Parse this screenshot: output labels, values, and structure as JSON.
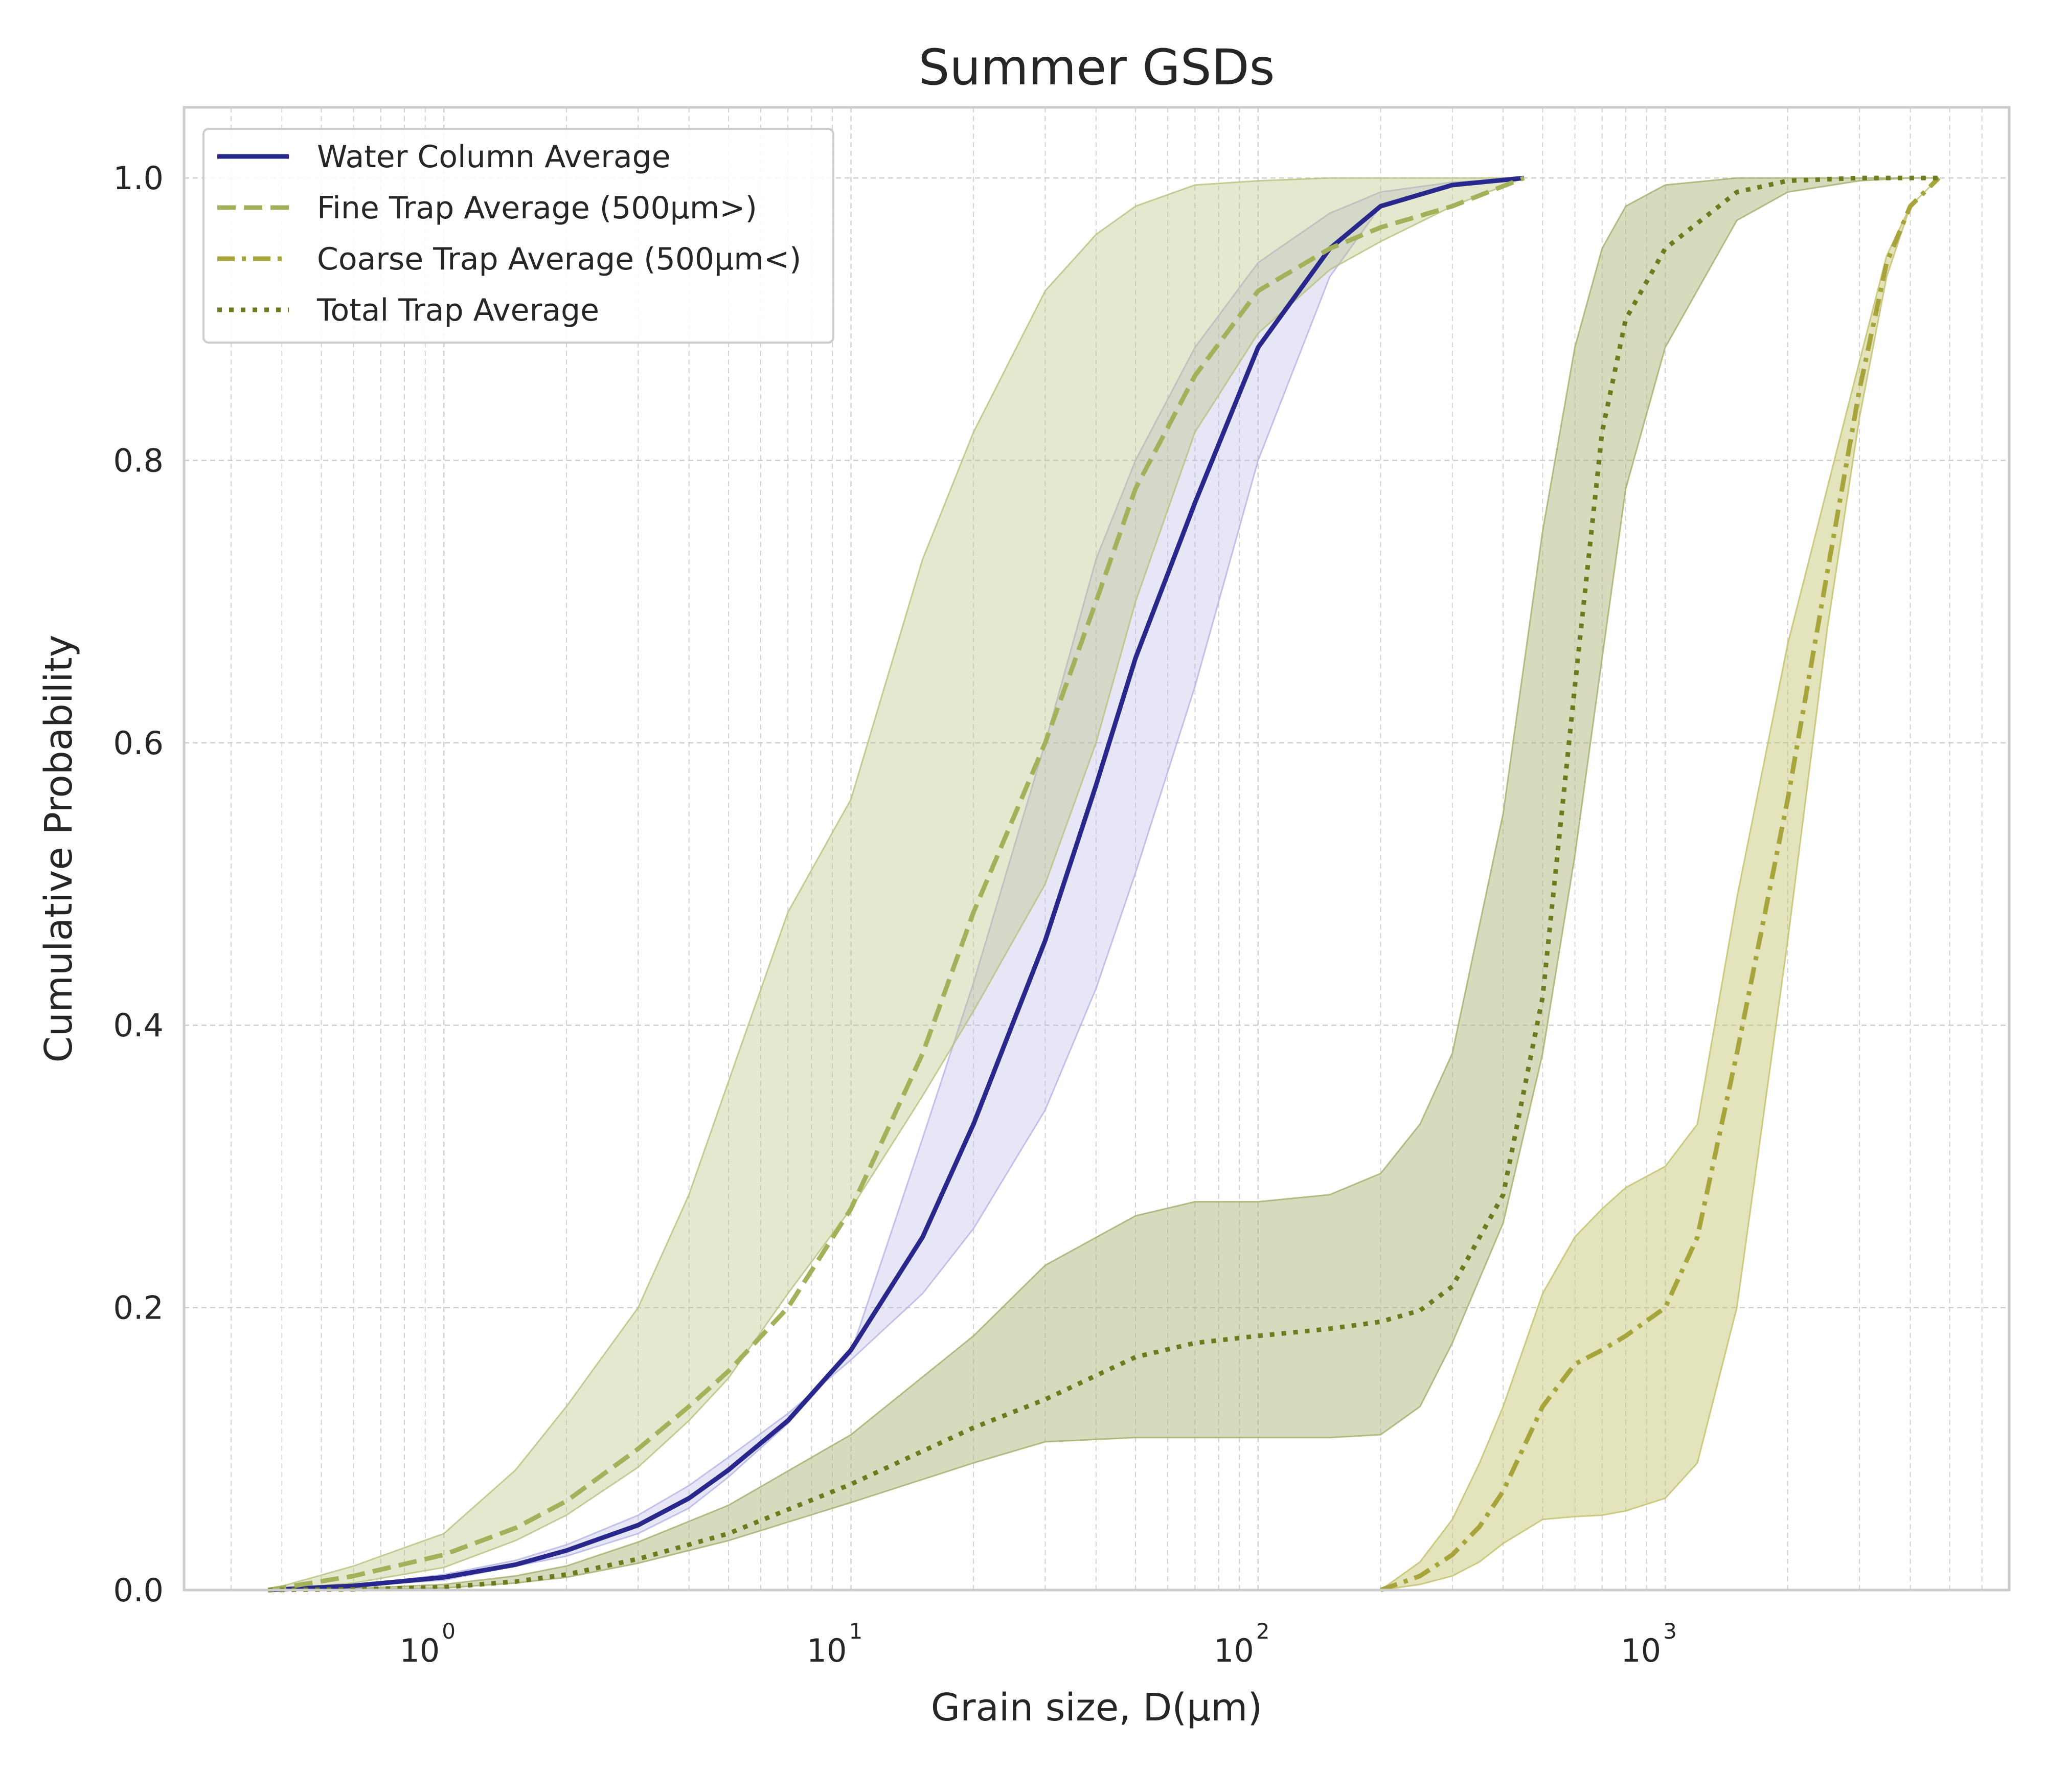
{
  "chart_data": {
    "type": "line",
    "title": "Summer GSDs",
    "xlabel": "Grain size, D(μm)",
    "ylabel": "Cumulative Probability",
    "xscale": "log",
    "xlim": [
      0.23,
      7000
    ],
    "ylim": [
      0,
      1.05
    ],
    "grid": true,
    "legend_position": "top-left",
    "xtick_labels": [
      {
        "value": 1,
        "base": "10",
        "exp": "0"
      },
      {
        "value": 10,
        "base": "10",
        "exp": "1"
      },
      {
        "value": 100,
        "base": "10",
        "exp": "2"
      },
      {
        "value": 1000,
        "base": "10",
        "exp": "3"
      }
    ],
    "ytick_labels": [
      "0.0",
      "0.2",
      "0.4",
      "0.6",
      "0.8",
      "1.0"
    ],
    "series": [
      {
        "name": "Water Column Average",
        "style": "solid",
        "color": "#28288c",
        "band_color": "#b4b4e6",
        "band_opacity": 0.33,
        "x": [
          0.37,
          0.6,
          1.0,
          1.5,
          2.0,
          3.0,
          4.0,
          5.0,
          7.0,
          10.0,
          15.0,
          20.0,
          30.0,
          40.0,
          50.0,
          70.0,
          100.0,
          150.0,
          200.0,
          300.0,
          450.0
        ],
        "y": [
          0.0,
          0.003,
          0.009,
          0.018,
          0.028,
          0.046,
          0.065,
          0.085,
          0.12,
          0.17,
          0.25,
          0.33,
          0.46,
          0.57,
          0.66,
          0.77,
          0.88,
          0.95,
          0.98,
          0.995,
          1.0
        ],
        "y_lower": [
          0.0,
          0.003,
          0.011,
          0.021,
          0.032,
          0.053,
          0.074,
          0.094,
          0.125,
          0.163,
          0.21,
          0.256,
          0.34,
          0.426,
          0.508,
          0.64,
          0.8,
          0.93,
          0.98,
          0.995,
          1.0
        ],
        "y_upper": [
          0.0,
          0.003,
          0.007,
          0.017,
          0.024,
          0.04,
          0.058,
          0.08,
          0.118,
          0.168,
          0.32,
          0.43,
          0.6,
          0.73,
          0.8,
          0.88,
          0.94,
          0.975,
          0.99,
          0.997,
          1.0
        ]
      },
      {
        "name": "Fine Trap Average (500μm>)",
        "style": "dashed",
        "color": "#a3b15a",
        "band_color": "#b7c27d",
        "band_opacity": 0.38,
        "x": [
          0.37,
          0.6,
          1.0,
          1.5,
          2.0,
          3.0,
          4.0,
          5.0,
          7.0,
          10.0,
          15.0,
          20.0,
          30.0,
          40.0,
          50.0,
          70.0,
          100.0,
          150.0,
          200.0,
          300.0,
          450.0
        ],
        "y": [
          0.0,
          0.01,
          0.025,
          0.044,
          0.063,
          0.1,
          0.13,
          0.155,
          0.2,
          0.27,
          0.38,
          0.48,
          0.6,
          0.7,
          0.78,
          0.86,
          0.92,
          0.95,
          0.965,
          0.98,
          1.0
        ],
        "y_lower": [
          0.0,
          0.005,
          0.016,
          0.035,
          0.053,
          0.087,
          0.12,
          0.15,
          0.21,
          0.27,
          0.35,
          0.41,
          0.5,
          0.6,
          0.7,
          0.82,
          0.89,
          0.935,
          0.955,
          0.98,
          1.0
        ],
        "y_upper": [
          0.0,
          0.017,
          0.04,
          0.085,
          0.13,
          0.2,
          0.28,
          0.36,
          0.48,
          0.56,
          0.73,
          0.82,
          0.92,
          0.96,
          0.98,
          0.995,
          0.998,
          1.0,
          1.0,
          1.0,
          1.0
        ]
      },
      {
        "name": "Coarse Trap Average (500μm<)",
        "style": "dashdot",
        "color": "#a8a43c",
        "band_color": "#c2c06a",
        "band_opacity": 0.45,
        "x": [
          200,
          250,
          300,
          350,
          400,
          500,
          600,
          700,
          800,
          1000,
          1200,
          1500,
          2000,
          2500,
          3000,
          3500,
          4000,
          4700
        ],
        "y": [
          0.0,
          0.01,
          0.025,
          0.045,
          0.07,
          0.13,
          0.16,
          0.17,
          0.18,
          0.2,
          0.25,
          0.38,
          0.56,
          0.72,
          0.85,
          0.94,
          0.98,
          1.0
        ],
        "y_lower": [
          0.0,
          0.004,
          0.01,
          0.02,
          0.033,
          0.05,
          0.052,
          0.053,
          0.056,
          0.065,
          0.09,
          0.2,
          0.46,
          0.68,
          0.83,
          0.93,
          0.98,
          1.0
        ],
        "y_upper": [
          0.0,
          0.02,
          0.05,
          0.09,
          0.13,
          0.21,
          0.25,
          0.27,
          0.285,
          0.3,
          0.33,
          0.49,
          0.67,
          0.78,
          0.87,
          0.945,
          0.98,
          1.0
        ]
      },
      {
        "name": "Total Trap Average",
        "style": "dotted",
        "color": "#6e7a1e",
        "band_color": "#a7ad6c",
        "band_opacity": 0.45,
        "x": [
          0.37,
          0.6,
          1.0,
          1.5,
          2.0,
          3.0,
          5.0,
          10.0,
          20.0,
          30.0,
          50.0,
          70.0,
          100.0,
          150.0,
          200.0,
          250.0,
          300.0,
          400.0,
          500.0,
          600.0,
          700.0,
          800.0,
          1000.0,
          1500.0,
          2000.0,
          3000.0,
          4000.0,
          4700.0
        ],
        "y": [
          0.0,
          0.0005,
          0.002,
          0.006,
          0.011,
          0.022,
          0.04,
          0.075,
          0.115,
          0.135,
          0.165,
          0.175,
          0.18,
          0.185,
          0.19,
          0.198,
          0.215,
          0.28,
          0.42,
          0.64,
          0.82,
          0.9,
          0.95,
          0.99,
          0.998,
          1.0,
          1.0,
          1.0
        ],
        "y_lower": [
          0.0,
          0.0004,
          0.0015,
          0.005,
          0.009,
          0.019,
          0.035,
          0.062,
          0.09,
          0.105,
          0.108,
          0.108,
          0.108,
          0.108,
          0.11,
          0.13,
          0.175,
          0.26,
          0.38,
          0.52,
          0.66,
          0.78,
          0.88,
          0.97,
          0.99,
          0.998,
          1.0,
          1.0
        ],
        "y_upper": [
          0.0,
          0.001,
          0.004,
          0.01,
          0.017,
          0.034,
          0.06,
          0.11,
          0.18,
          0.23,
          0.265,
          0.275,
          0.275,
          0.28,
          0.295,
          0.33,
          0.38,
          0.55,
          0.75,
          0.88,
          0.95,
          0.98,
          0.995,
          1.0,
          1.0,
          1.0,
          1.0,
          1.0
        ]
      }
    ]
  }
}
